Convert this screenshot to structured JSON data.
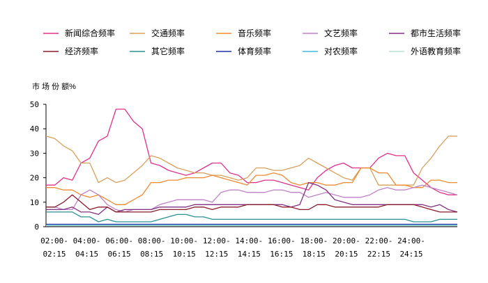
{
  "chart_data": {
    "type": "line",
    "ylabel": "市 场 份 额%",
    "ylim": [
      0,
      50
    ],
    "yticks": [
      0,
      10,
      20,
      30,
      40,
      50
    ],
    "xtick_labels": [
      [
        "02:00-",
        "02:15"
      ],
      [
        "04:00-",
        "04:15"
      ],
      [
        "06:00-",
        "06:15"
      ],
      [
        "08:00-",
        "08:15"
      ],
      [
        "10:00-",
        "10:15"
      ],
      [
        "12:00-",
        "12:15"
      ],
      [
        "14:00-",
        "14:15"
      ],
      [
        "16:00-",
        "16:15"
      ],
      [
        "18:00-",
        "18:15"
      ],
      [
        "20:00-",
        "20:15"
      ],
      [
        "22:00-",
        "22:15"
      ],
      [
        "24:00-",
        "24:15"
      ]
    ],
    "x": [
      "02:00",
      "02:30",
      "03:00",
      "03:30",
      "04:00",
      "04:30",
      "05:00",
      "05:30",
      "06:00",
      "06:30",
      "07:00",
      "07:30",
      "08:00",
      "08:30",
      "09:00",
      "09:30",
      "10:00",
      "10:30",
      "11:00",
      "11:30",
      "12:00",
      "12:30",
      "13:00",
      "13:30",
      "14:00",
      "14:30",
      "15:00",
      "15:30",
      "16:00",
      "16:30",
      "17:00",
      "17:30",
      "18:00",
      "18:30",
      "19:00",
      "19:30",
      "20:00",
      "20:30",
      "21:00",
      "21:30",
      "22:00",
      "22:30",
      "23:00",
      "23:30",
      "24:00",
      "24:30",
      "25:00",
      "25:30"
    ],
    "legend_placement": "top",
    "grid": false,
    "series": [
      {
        "name": "新闻综合频率",
        "color": "#e0308a",
        "values": [
          17,
          17,
          20,
          19,
          26,
          28,
          35,
          37,
          48,
          48,
          43,
          40,
          26,
          25,
          23,
          22,
          21,
          22,
          24,
          26,
          26,
          22,
          21,
          18,
          18,
          19,
          19,
          18,
          17,
          16,
          15,
          20,
          23,
          25,
          26,
          24,
          24,
          24,
          28,
          30,
          29,
          29,
          22,
          19,
          16,
          14,
          13,
          13
        ]
      },
      {
        "name": "交通频率",
        "color": "#d7a05a",
        "values": [
          37,
          36,
          33,
          31,
          26,
          26,
          18,
          20,
          18,
          19,
          22,
          25,
          29,
          28,
          26,
          24,
          23,
          22,
          22,
          21,
          21,
          20,
          19,
          20,
          24,
          24,
          23,
          23,
          24,
          25,
          28,
          26,
          24,
          22,
          20,
          19,
          24,
          24,
          17,
          17,
          17,
          17,
          17,
          24,
          28,
          33,
          37,
          37
        ]
      },
      {
        "name": "音乐频率",
        "color": "#f08a30",
        "values": [
          16,
          16,
          15,
          15,
          13,
          12,
          13,
          11,
          9,
          9,
          11,
          13,
          18,
          18,
          19,
          19,
          20,
          20,
          20,
          21,
          20,
          19,
          18,
          17,
          21,
          21,
          22,
          21,
          18,
          17,
          18,
          18,
          17,
          17,
          18,
          18,
          24,
          24,
          22,
          22,
          17,
          17,
          16,
          16,
          19,
          19,
          18,
          18
        ]
      },
      {
        "name": "文艺频率",
        "color": "#c080c8",
        "values": [
          8,
          8,
          7,
          7,
          13,
          15,
          13,
          9,
          7,
          6,
          7,
          7,
          7,
          9,
          10,
          11,
          11,
          11,
          11,
          10,
          14,
          15,
          15,
          14,
          14,
          14,
          15,
          15,
          14,
          14,
          12,
          13,
          14,
          13,
          12,
          12,
          12,
          13,
          15,
          16,
          15,
          15,
          16,
          17,
          16,
          15,
          14,
          13
        ]
      },
      {
        "name": "都市生活频率",
        "color": "#803080",
        "values": [
          7,
          7,
          7,
          8,
          6,
          6,
          5,
          8,
          6,
          7,
          7,
          7,
          7,
          8,
          8,
          8,
          8,
          9,
          9,
          9,
          9,
          9,
          9,
          9,
          9,
          9,
          9,
          9,
          8,
          9,
          18,
          17,
          15,
          11,
          10,
          9,
          9,
          9,
          9,
          9,
          9,
          9,
          9,
          9,
          8,
          9,
          7,
          6
        ]
      },
      {
        "name": "经济频率",
        "color": "#8b1a2a",
        "values": [
          8,
          8,
          10,
          13,
          10,
          7,
          8,
          8,
          6,
          6,
          6,
          6,
          6,
          7,
          7,
          7,
          7,
          8,
          8,
          7,
          8,
          8,
          8,
          9,
          9,
          9,
          9,
          8,
          8,
          7,
          7,
          9,
          9,
          8,
          8,
          8,
          8,
          8,
          8,
          9,
          9,
          9,
          9,
          8,
          7,
          6,
          6,
          6
        ]
      },
      {
        "name": "其它频率",
        "color": "#2a9090",
        "values": [
          6,
          6,
          6,
          6,
          4,
          4,
          2,
          3,
          2,
          2,
          2,
          2,
          2,
          3,
          4,
          5,
          5,
          4,
          4,
          3,
          3,
          3,
          3,
          3,
          3,
          3,
          3,
          3,
          3,
          3,
          3,
          3,
          3,
          3,
          3,
          3,
          3,
          3,
          3,
          3,
          3,
          3,
          2,
          2,
          2,
          3,
          3,
          3
        ]
      },
      {
        "name": "体育频率",
        "color": "#2030a0",
        "values": [
          1,
          1,
          1,
          1,
          1,
          1,
          1,
          1,
          1,
          1,
          1,
          1,
          1,
          1,
          1,
          1,
          1,
          1,
          1,
          1,
          1,
          1,
          1,
          1,
          1,
          1,
          1,
          1,
          1,
          1,
          1,
          1,
          1,
          1,
          1,
          1,
          1,
          1,
          1,
          1,
          1,
          1,
          1,
          1,
          1,
          1,
          1,
          1
        ]
      },
      {
        "name": "对农频率",
        "color": "#40b8e0",
        "values": [
          0.5,
          0.5,
          0.5,
          0.5,
          0.5,
          0.5,
          0.5,
          0.5,
          0.5,
          0.5,
          0.5,
          0.5,
          0.5,
          0.5,
          0.5,
          0.5,
          0.5,
          0.5,
          0.5,
          0.5,
          0.5,
          0.5,
          0.5,
          0.5,
          0.5,
          0.5,
          0.5,
          0.5,
          0.5,
          0.5,
          0.5,
          0.5,
          0.5,
          0.5,
          0.5,
          0.5,
          0.5,
          0.5,
          0.5,
          0.5,
          0.5,
          0.5,
          0.5,
          0.5,
          0.5,
          0.5,
          0.5,
          0.5
        ]
      },
      {
        "name": "外语教育频率",
        "color": "#b8e0d0",
        "values": [
          0.3,
          0.3,
          0.3,
          0.3,
          0.3,
          0.3,
          0.3,
          0.3,
          0.3,
          0.3,
          0.3,
          0.3,
          0.3,
          0.3,
          0.3,
          0.3,
          0.3,
          0.3,
          0.3,
          0.3,
          0.3,
          0.3,
          0.3,
          0.3,
          0.3,
          0.3,
          0.3,
          0.3,
          0.3,
          0.3,
          0.3,
          0.3,
          0.3,
          0.3,
          0.3,
          0.3,
          0.3,
          0.3,
          0.3,
          0.3,
          0.3,
          0.3,
          0.3,
          0.3,
          0.3,
          0.3,
          0.3,
          0.3
        ]
      }
    ]
  }
}
